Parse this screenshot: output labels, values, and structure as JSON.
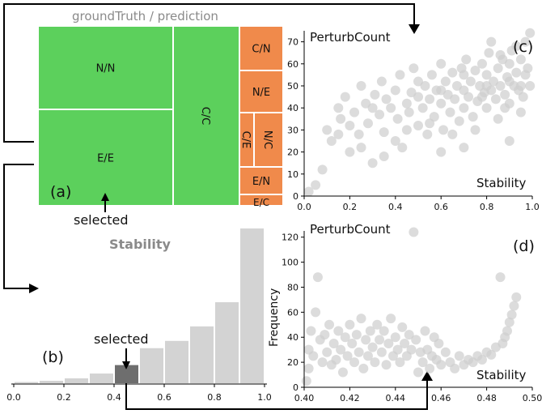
{
  "treemap": {
    "title": "groundTruth / prediction",
    "panel_label": "(a)",
    "selected_label": "selected",
    "cells": [
      {
        "label": "N/N",
        "value": 30,
        "color": "#5cd05c"
      },
      {
        "label": "E/E",
        "value": 33,
        "color": "#5cd05c"
      },
      {
        "label": "C/C",
        "value": 24,
        "color": "#5cd05c"
      },
      {
        "label": "C/N",
        "value": 3.5,
        "color": "#f08a4b"
      },
      {
        "label": "N/E",
        "value": 4.2,
        "color": "#f08a4b"
      },
      {
        "label": "C/E",
        "value": 2.5,
        "color": "#f08a4b"
      },
      {
        "label": "N/C",
        "value": 2.8,
        "color": "#f08a4b"
      },
      {
        "label": "E/N",
        "value": 2.5,
        "color": "#f08a4b"
      },
      {
        "label": "E/C",
        "value": 0.8,
        "color": "#f08a4b"
      }
    ]
  },
  "chart_data": [
    {
      "type": "bar",
      "panel_label": "(b)",
      "title": "Stability",
      "selected_label": "selected",
      "categories": [
        0.0,
        0.1,
        0.2,
        0.3,
        0.4,
        0.5,
        0.6,
        0.7,
        0.8,
        0.9
      ],
      "values": [
        1,
        2,
        4,
        8,
        15,
        29,
        35,
        47,
        67,
        128
      ],
      "selected_index": 4,
      "xticks": [
        "0.0",
        "0.2",
        "0.4",
        "0.6",
        "0.8",
        "1.0"
      ],
      "xlim": [
        0,
        1
      ],
      "ymax": 128,
      "bar_color": "#d3d3d3",
      "selected_color": "#6e6e6e"
    },
    {
      "type": "scatter",
      "panel_label": "(c)",
      "ylabel": "PerturbCount",
      "xlabel": "Stability",
      "xlim": [
        0,
        1
      ],
      "ylim": [
        0,
        75
      ],
      "xticks": [
        "0.0",
        "0.2",
        "0.4",
        "0.6",
        "0.8",
        "1.0"
      ],
      "yticks": [
        "0",
        "10",
        "20",
        "30",
        "40",
        "50",
        "60",
        "70"
      ],
      "point_color": "#cfcfcf",
      "points": [
        [
          0.02,
          2
        ],
        [
          0.05,
          5
        ],
        [
          0.08,
          12
        ],
        [
          0.1,
          30
        ],
        [
          0.12,
          25
        ],
        [
          0.15,
          40
        ],
        [
          0.16,
          35
        ],
        [
          0.18,
          45
        ],
        [
          0.2,
          20
        ],
        [
          0.22,
          38
        ],
        [
          0.24,
          28
        ],
        [
          0.25,
          50
        ],
        [
          0.27,
          42
        ],
        [
          0.28,
          33
        ],
        [
          0.3,
          15
        ],
        [
          0.31,
          46
        ],
        [
          0.33,
          37
        ],
        [
          0.34,
          52
        ],
        [
          0.35,
          29
        ],
        [
          0.36,
          44
        ],
        [
          0.38,
          40
        ],
        [
          0.4,
          48
        ],
        [
          0.41,
          35
        ],
        [
          0.42,
          55
        ],
        [
          0.43,
          22
        ],
        [
          0.45,
          42
        ],
        [
          0.46,
          38
        ],
        [
          0.47,
          47
        ],
        [
          0.48,
          58
        ],
        [
          0.5,
          32
        ],
        [
          0.5,
          45
        ],
        [
          0.52,
          40
        ],
        [
          0.53,
          50
        ],
        [
          0.54,
          28
        ],
        [
          0.55,
          44
        ],
        [
          0.56,
          55
        ],
        [
          0.57,
          36
        ],
        [
          0.58,
          48
        ],
        [
          0.6,
          42
        ],
        [
          0.6,
          60
        ],
        [
          0.61,
          30
        ],
        [
          0.62,
          52
        ],
        [
          0.63,
          46
        ],
        [
          0.64,
          38
        ],
        [
          0.65,
          56
        ],
        [
          0.66,
          44
        ],
        [
          0.67,
          50
        ],
        [
          0.68,
          34
        ],
        [
          0.69,
          58
        ],
        [
          0.7,
          48
        ],
        [
          0.7,
          40
        ],
        [
          0.71,
          62
        ],
        [
          0.72,
          45
        ],
        [
          0.73,
          52
        ],
        [
          0.74,
          36
        ],
        [
          0.75,
          57
        ],
        [
          0.76,
          43
        ],
        [
          0.77,
          50
        ],
        [
          0.78,
          60
        ],
        [
          0.79,
          47
        ],
        [
          0.8,
          40
        ],
        [
          0.8,
          55
        ],
        [
          0.81,
          65
        ],
        [
          0.82,
          48
        ],
        [
          0.83,
          52
        ],
        [
          0.84,
          44
        ],
        [
          0.85,
          58
        ],
        [
          0.86,
          50
        ],
        [
          0.87,
          62
        ],
        [
          0.88,
          46
        ],
        [
          0.89,
          54
        ],
        [
          0.9,
          42
        ],
        [
          0.9,
          60
        ],
        [
          0.91,
          66
        ],
        [
          0.92,
          50
        ],
        [
          0.93,
          56
        ],
        [
          0.94,
          48
        ],
        [
          0.95,
          62
        ],
        [
          0.96,
          45
        ],
        [
          0.97,
          55
        ],
        [
          0.98,
          58
        ],
        [
          0.99,
          50
        ],
        [
          0.99,
          74
        ],
        [
          0.97,
          70
        ],
        [
          0.93,
          68
        ],
        [
          0.86,
          64
        ],
        [
          0.82,
          70
        ],
        [
          0.9,
          25
        ],
        [
          0.6,
          20
        ],
        [
          0.7,
          22
        ],
        [
          0.4,
          25
        ],
        [
          0.35,
          18
        ],
        [
          0.45,
          30
        ],
        [
          0.55,
          33
        ],
        [
          0.65,
          28
        ],
        [
          0.75,
          30
        ],
        [
          0.85,
          35
        ],
        [
          0.95,
          38
        ],
        [
          0.2,
          32
        ],
        [
          0.25,
          22
        ],
        [
          0.15,
          28
        ],
        [
          0.3,
          40
        ],
        [
          0.5,
          52
        ],
        [
          0.6,
          48
        ],
        [
          0.7,
          55
        ],
        [
          0.8,
          50
        ],
        [
          0.9,
          52
        ],
        [
          0.95,
          50
        ],
        [
          0.88,
          40
        ],
        [
          0.78,
          45
        ]
      ]
    },
    {
      "type": "scatter",
      "panel_label": "(d)",
      "ylabel": "PerturbCount",
      "ylabel2": "Frequency",
      "xlabel": "Stability",
      "xlim": [
        0.4,
        0.5
      ],
      "ylim": [
        0,
        125
      ],
      "xticks": [
        "0.40",
        "0.42",
        "0.44",
        "0.46",
        "0.48",
        "0.50"
      ],
      "yticks": [
        "0",
        "20",
        "40",
        "60",
        "80",
        "100",
        "120"
      ],
      "point_color": "#cfcfcf",
      "points": [
        [
          0.401,
          5
        ],
        [
          0.402,
          15
        ],
        [
          0.402,
          30
        ],
        [
          0.403,
          45
        ],
        [
          0.404,
          25
        ],
        [
          0.405,
          60
        ],
        [
          0.406,
          88
        ],
        [
          0.407,
          38
        ],
        [
          0.408,
          20
        ],
        [
          0.409,
          42
        ],
        [
          0.41,
          28
        ],
        [
          0.411,
          50
        ],
        [
          0.412,
          18
        ],
        [
          0.413,
          35
        ],
        [
          0.414,
          22
        ],
        [
          0.415,
          45
        ],
        [
          0.416,
          30
        ],
        [
          0.417,
          12
        ],
        [
          0.418,
          40
        ],
        [
          0.419,
          25
        ],
        [
          0.42,
          50
        ],
        [
          0.421,
          35
        ],
        [
          0.422,
          20
        ],
        [
          0.423,
          42
        ],
        [
          0.424,
          28
        ],
        [
          0.425,
          55
        ],
        [
          0.426,
          15
        ],
        [
          0.427,
          38
        ],
        [
          0.428,
          25
        ],
        [
          0.429,
          45
        ],
        [
          0.43,
          32
        ],
        [
          0.431,
          20
        ],
        [
          0.432,
          50
        ],
        [
          0.433,
          38
        ],
        [
          0.434,
          28
        ],
        [
          0.435,
          45
        ],
        [
          0.436,
          18
        ],
        [
          0.437,
          35
        ],
        [
          0.438,
          55
        ],
        [
          0.439,
          25
        ],
        [
          0.44,
          40
        ],
        [
          0.441,
          30
        ],
        [
          0.442,
          20
        ],
        [
          0.443,
          48
        ],
        [
          0.444,
          35
        ],
        [
          0.445,
          25
        ],
        [
          0.446,
          42
        ],
        [
          0.447,
          30
        ],
        [
          0.448,
          124
        ],
        [
          0.449,
          38
        ],
        [
          0.45,
          12
        ],
        [
          0.451,
          28
        ],
        [
          0.452,
          20
        ],
        [
          0.453,
          45
        ],
        [
          0.454,
          30
        ],
        [
          0.455,
          15
        ],
        [
          0.456,
          25
        ],
        [
          0.457,
          40
        ],
        [
          0.458,
          22
        ],
        [
          0.459,
          35
        ],
        [
          0.46,
          18
        ],
        [
          0.462,
          28
        ],
        [
          0.464,
          20
        ],
        [
          0.466,
          15
        ],
        [
          0.468,
          25
        ],
        [
          0.47,
          18
        ],
        [
          0.472,
          22
        ],
        [
          0.474,
          20
        ],
        [
          0.476,
          25
        ],
        [
          0.478,
          22
        ],
        [
          0.48,
          28
        ],
        [
          0.482,
          26
        ],
        [
          0.484,
          32
        ],
        [
          0.486,
          88
        ],
        [
          0.487,
          35
        ],
        [
          0.488,
          40
        ],
        [
          0.489,
          45
        ],
        [
          0.49,
          52
        ],
        [
          0.491,
          58
        ],
        [
          0.492,
          65
        ],
        [
          0.493,
          72
        ]
      ]
    }
  ]
}
